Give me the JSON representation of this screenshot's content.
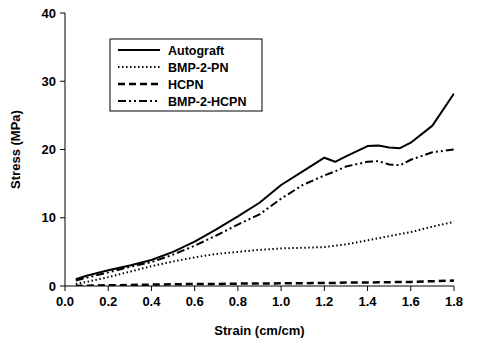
{
  "chart_data": {
    "type": "line",
    "x_label": "Strain (cm/cm)",
    "y_label": "Stress (MPa)",
    "x": [
      0.05,
      0.1,
      0.2,
      0.3,
      0.4,
      0.5,
      0.6,
      0.7,
      0.8,
      0.9,
      1.0,
      1.1,
      1.2,
      1.25,
      1.3,
      1.4,
      1.45,
      1.5,
      1.55,
      1.6,
      1.7,
      1.8
    ],
    "series": [
      {
        "name": "Autograft",
        "color": "#000000",
        "line_style": "solid",
        "values": [
          1.0,
          1.5,
          2.3,
          3.0,
          3.8,
          5.0,
          6.5,
          8.3,
          10.2,
          12.2,
          14.8,
          16.8,
          18.8,
          18.2,
          19.0,
          20.5,
          20.6,
          20.3,
          20.2,
          21.0,
          23.5,
          28.2
        ]
      },
      {
        "name": "BMP-2-PN",
        "color": "#000000",
        "line_style": "dotted",
        "values": [
          0.3,
          0.6,
          1.3,
          2.1,
          2.9,
          3.6,
          4.2,
          4.7,
          5.0,
          5.3,
          5.5,
          5.6,
          5.7,
          5.9,
          6.1,
          6.7,
          7.0,
          7.3,
          7.6,
          7.9,
          8.7,
          9.4
        ]
      },
      {
        "name": "HCPN",
        "color": "#000000",
        "line_style": "dashed",
        "values": [
          0.0,
          0.05,
          0.1,
          0.15,
          0.2,
          0.25,
          0.3,
          0.3,
          0.35,
          0.35,
          0.4,
          0.4,
          0.45,
          0.45,
          0.5,
          0.5,
          0.55,
          0.55,
          0.6,
          0.6,
          0.7,
          0.8
        ]
      },
      {
        "name": "BMP-2-HCPN",
        "color": "#000000",
        "line_style": "dash-dot-dot",
        "values": [
          0.8,
          1.2,
          2.0,
          2.8,
          3.5,
          4.6,
          5.9,
          7.4,
          9.0,
          10.5,
          12.8,
          14.8,
          16.2,
          16.8,
          17.5,
          18.2,
          18.3,
          17.8,
          17.7,
          18.5,
          19.6,
          20.0
        ]
      }
    ],
    "xlim": [
      0,
      1.8
    ],
    "xticks": [
      {
        "value": 0,
        "label": "0.0"
      },
      0.2,
      0.4,
      0.6,
      0.8,
      {
        "value": 1,
        "label": "1.0"
      },
      1.2,
      1.4,
      1.6,
      1.8
    ],
    "ylim": [
      0,
      40
    ],
    "yticks": [
      0,
      10,
      20,
      30,
      40
    ],
    "grid": false,
    "legend": "top-left"
  }
}
